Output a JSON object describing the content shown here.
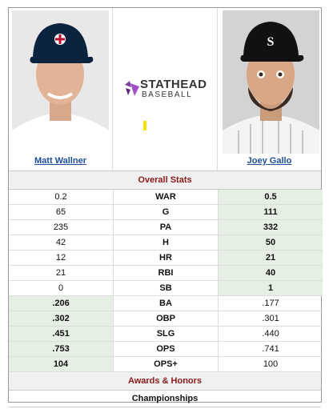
{
  "players": {
    "left": {
      "name": "Matt Wallner"
    },
    "right": {
      "name": "Joey Gallo"
    }
  },
  "logo": {
    "brand": "STATHEAD",
    "sub": "BASEBALL"
  },
  "sections": {
    "overall": "Overall Stats",
    "awards": "Awards & Honors",
    "championships": "Championships"
  },
  "colors": {
    "win_highlight": "#e6efe3",
    "section_text": "#8b1a1a",
    "link": "#1f4e9c"
  },
  "stats": [
    {
      "label": "WAR",
      "left": "0.2",
      "right": "0.5",
      "winner": "right"
    },
    {
      "label": "G",
      "left": "65",
      "right": "111",
      "winner": "right"
    },
    {
      "label": "PA",
      "left": "235",
      "right": "332",
      "winner": "right"
    },
    {
      "label": "H",
      "left": "42",
      "right": "50",
      "winner": "right"
    },
    {
      "label": "HR",
      "left": "12",
      "right": "21",
      "winner": "right"
    },
    {
      "label": "RBI",
      "left": "21",
      "right": "40",
      "winner": "right"
    },
    {
      "label": "SB",
      "left": "0",
      "right": "1",
      "winner": "right"
    },
    {
      "label": "BA",
      "left": ".206",
      "right": ".177",
      "winner": "left"
    },
    {
      "label": "OBP",
      "left": ".302",
      "right": ".301",
      "winner": "left"
    },
    {
      "label": "SLG",
      "left": ".451",
      "right": ".440",
      "winner": "left"
    },
    {
      "label": "OPS",
      "left": ".753",
      "right": ".741",
      "winner": "left"
    },
    {
      "label": "OPS+",
      "left": "104",
      "right": "100",
      "winner": "left"
    }
  ]
}
